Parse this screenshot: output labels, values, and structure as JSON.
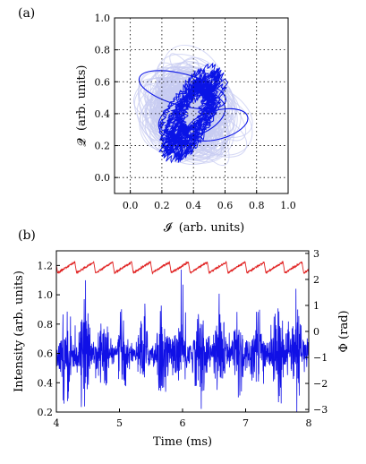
{
  "chart_data": [
    {
      "panel_label": "(a)",
      "type": "scatter",
      "xlabel_symbol": "𝓘",
      "xlabel_units": "(arb. units)",
      "ylabel_symbol": "𝓠",
      "ylabel_units": "(arb. units)",
      "xlim": [
        -0.1,
        1.0
      ],
      "ylim": [
        -0.1,
        1.0
      ],
      "xticks": [
        "0.0",
        "0.2",
        "0.4",
        "0.6",
        "0.8",
        "1.0"
      ],
      "yticks": [
        "0.0",
        "0.2",
        "0.4",
        "0.6",
        "0.8",
        "1.0"
      ],
      "xtick_values": [
        0.0,
        0.2,
        0.4,
        0.6,
        0.8,
        1.0
      ],
      "ytick_values": [
        0.0,
        0.2,
        0.4,
        0.6,
        0.8,
        1.0
      ],
      "grid": "dotted",
      "series": [
        {
          "color": "#c8ccf2",
          "cloud": {
            "center": [
              0.37,
              0.42
            ],
            "spread_x": 0.14,
            "spread_y": 0.17
          }
        },
        {
          "color": "#0a14e6",
          "trajectory": {
            "center": [
              0.39,
              0.4
            ],
            "extent_x": [
              0.15,
              0.78
            ],
            "extent_y": [
              0.12,
              0.85
            ]
          }
        }
      ]
    },
    {
      "panel_label": "(b)",
      "type": "line",
      "xlabel": "Time (ms)",
      "ylabel": "Intensity (arb. units)",
      "ylabel_right": "Φ (rad)",
      "xlim": [
        4,
        8
      ],
      "ylim": [
        0.2,
        1.3
      ],
      "ylim_right": [
        -3.1,
        3.1
      ],
      "xticks": [
        "4",
        "5",
        "6",
        "7",
        "8"
      ],
      "xtick_values": [
        4,
        5,
        6,
        7,
        8
      ],
      "yticks": [
        "0.2",
        "0.4",
        "0.6",
        "0.8",
        "1.0",
        "1.2"
      ],
      "ytick_values": [
        0.2,
        0.4,
        0.6,
        0.8,
        1.0,
        1.2
      ],
      "yticks_right": [
        "−3",
        "−2",
        "−1",
        "0",
        "1",
        "2",
        "3"
      ],
      "ytick_values_right": [
        -3,
        -2,
        -1,
        0,
        1,
        2,
        3
      ],
      "series": [
        {
          "color": "#e02020",
          "sawtooth": {
            "period_ms": 0.3,
            "low": 1.15,
            "high": 1.23
          }
        },
        {
          "color": "#1010e6",
          "noisy": {
            "mean": 0.6,
            "amplitude_range": [
              0.25,
              1.25
            ]
          }
        }
      ]
    }
  ]
}
